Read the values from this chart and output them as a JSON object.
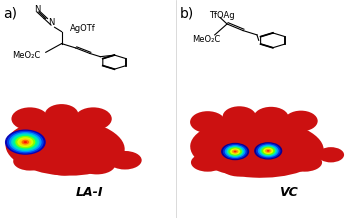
{
  "title_a": "a)",
  "title_b": "b)",
  "label_a": "LA-I",
  "label_b": "VC",
  "fig_width": 3.52,
  "fig_height": 2.18,
  "dpi": 100,
  "background": "#ffffff",
  "label_fontsize": 9,
  "panel_label_fontsize": 10,
  "mol_a_color": "#cc1111",
  "mol_b_color": "#cc1111"
}
